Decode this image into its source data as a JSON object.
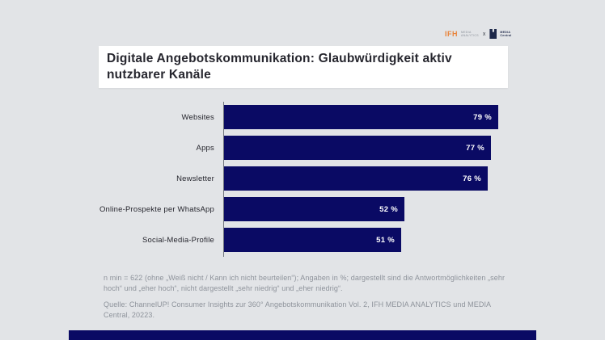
{
  "page": {
    "background_color": "#e2e4e7",
    "accent_navy": "#0a0a64"
  },
  "logo": {
    "ifh_text": "IFH",
    "ifh_sub_line1": "MEDIA",
    "ifh_sub_line2": "ANALYTICS",
    "separator": "x",
    "mc_line1": "MEDIA",
    "mc_line2": "Central",
    "ifh_color": "#e8833a",
    "mark_color": "#1c2749"
  },
  "title": {
    "text": "Digitale Angebotskommunikation: Glaubwürdigkeit aktiv nutzbarer Kanäle"
  },
  "chart_data": {
    "type": "bar",
    "orientation": "horizontal",
    "title": "Digitale Angebotskommunikation: Glaubwürdigkeit aktiv nutzbarer Kanäle",
    "categories": [
      "Websites",
      "Apps",
      "Newsletter",
      "Online-Prospekte per WhatsApp",
      "Social-Media-Profile"
    ],
    "values": [
      79,
      77,
      76,
      52,
      51
    ],
    "value_labels": [
      "79 %",
      "77 %",
      "76 %",
      "52 %",
      "51 %"
    ],
    "unit": "%",
    "xlim": [
      0,
      100
    ],
    "grid": false,
    "legend": false,
    "bar_color": "#0a0a64",
    "value_label_color": "#ffffff"
  },
  "footnote": {
    "text": "n min = 622 (ohne „Weiß nicht / Kann ich nicht beurteilen“); Angaben in %; dargestellt sind die Antwortmöglichkeiten „sehr hoch“ und „eher hoch“, nicht dargestellt „sehr niedrig“ und „eher niedrig“."
  },
  "source": {
    "text": "Quelle: ChannelUP! Consumer Insights zur 360° Angebotskommunikation Vol. 2, IFH MEDIA ANALYTICS und MEDIA Central, 20223."
  }
}
